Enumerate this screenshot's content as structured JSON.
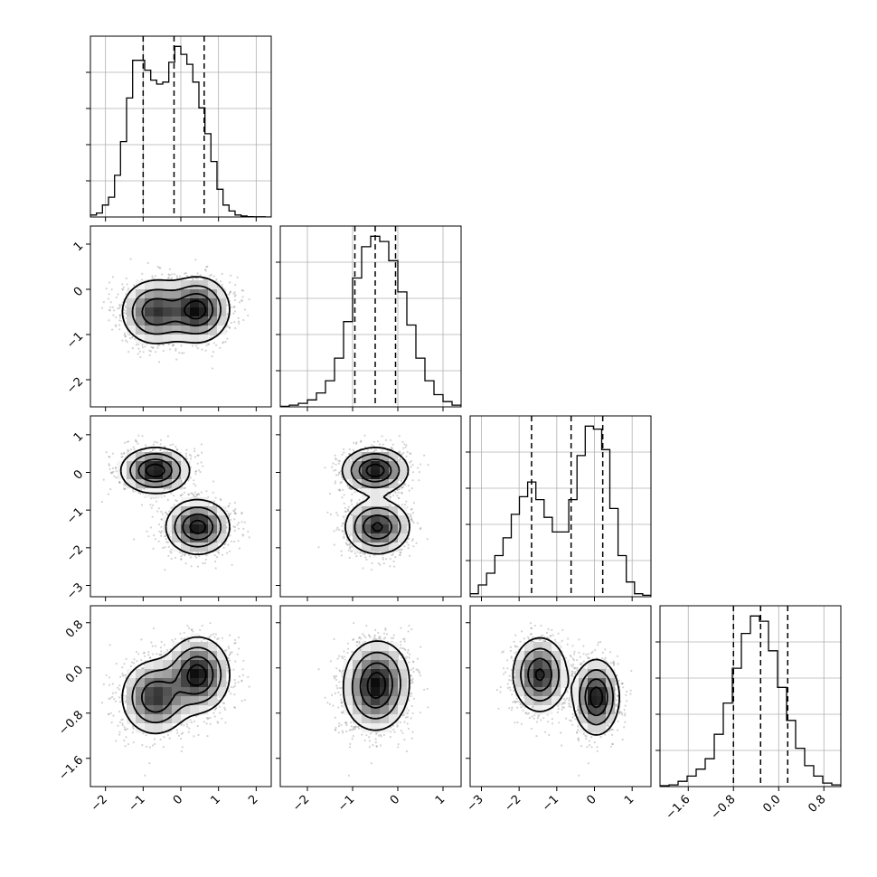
{
  "chart_data": {
    "type": "corner",
    "parameters": [
      {
        "range": [
          -2.4,
          2.4
        ],
        "ticks": [
          -2,
          -1,
          0,
          1,
          2
        ],
        "tick_labels": [
          "−2",
          "−1",
          "0",
          "1",
          "2"
        ],
        "quantiles": [
          -1.0,
          -0.18,
          0.62
        ],
        "hist": [
          0.01,
          0.02,
          0.06,
          0.1,
          0.21,
          0.38,
          0.6,
          0.79,
          0.79,
          0.74,
          0.69,
          0.67,
          0.68,
          0.78,
          0.86,
          0.82,
          0.77,
          0.68,
          0.55,
          0.42,
          0.28,
          0.14,
          0.06,
          0.03,
          0.01,
          0.005,
          0.002,
          0.001,
          0.001,
          0.0
        ]
      },
      {
        "range": [
          -2.6,
          1.4
        ],
        "ticks": [
          -2,
          -1,
          0,
          1
        ],
        "tick_labels": [
          "−2",
          "−1",
          "0",
          "1"
        ],
        "quantiles": [
          -0.95,
          -0.5,
          -0.05
        ],
        "hist": [
          0.003,
          0.01,
          0.02,
          0.04,
          0.08,
          0.15,
          0.28,
          0.49,
          0.74,
          0.92,
          0.98,
          0.95,
          0.84,
          0.66,
          0.47,
          0.28,
          0.15,
          0.07,
          0.03,
          0.01
        ]
      },
      {
        "range": [
          -3.3,
          1.5
        ],
        "ticks": [
          -3,
          -2,
          -1,
          0,
          1
        ],
        "tick_labels": [
          "−3",
          "−2",
          "−1",
          "0",
          "1"
        ],
        "quantiles": [
          -1.67,
          -0.62,
          0.22
        ],
        "hist": [
          0.01,
          0.04,
          0.08,
          0.14,
          0.2,
          0.28,
          0.34,
          0.39,
          0.33,
          0.27,
          0.22,
          0.22,
          0.33,
          0.48,
          0.58,
          0.57,
          0.5,
          0.3,
          0.14,
          0.05,
          0.01,
          0.005
        ]
      },
      {
        "range": [
          -2.1,
          1.1
        ],
        "ticks": [
          -1.6,
          -0.8,
          0.0,
          0.8
        ],
        "tick_labels": [
          "−1.6",
          "−0.8",
          "0.0",
          "0.8"
        ],
        "quantiles": [
          -0.8,
          -0.32,
          0.16
        ],
        "hist": [
          0.005,
          0.01,
          0.03,
          0.06,
          0.1,
          0.16,
          0.3,
          0.48,
          0.68,
          0.88,
          0.98,
          0.95,
          0.78,
          0.57,
          0.38,
          0.22,
          0.12,
          0.06,
          0.02,
          0.01
        ]
      }
    ],
    "modes": [
      {
        "weight": 0.48,
        "mean": [
          -0.68,
          -0.5,
          0.05,
          -0.52
        ],
        "sd": [
          0.45,
          0.36,
          0.3,
          0.33
        ]
      },
      {
        "weight": 0.52,
        "mean": [
          0.45,
          -0.45,
          -1.45,
          -0.12
        ],
        "sd": [
          0.42,
          0.36,
          0.36,
          0.33
        ]
      }
    ],
    "grid": true
  }
}
